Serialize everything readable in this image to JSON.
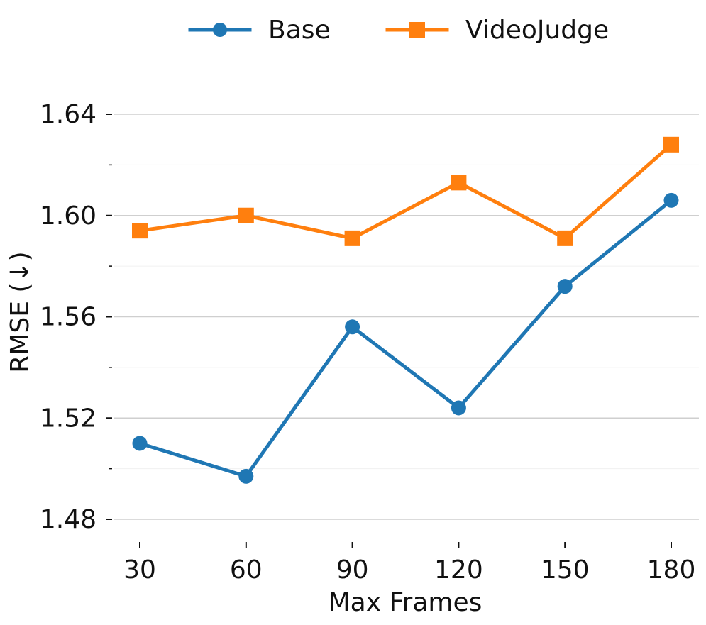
{
  "chart_data": {
    "type": "line",
    "title": "",
    "xlabel": "Max Frames",
    "ylabel": "RMSE (↓)",
    "categories": [
      "30",
      "60",
      "90",
      "120",
      "150",
      "180"
    ],
    "x": [
      30,
      60,
      90,
      120,
      150,
      180
    ],
    "series": [
      {
        "name": "Base",
        "values": [
          1.51,
          1.497,
          1.556,
          1.524,
          1.572,
          1.606
        ],
        "color": "#1f77b4",
        "marker": "circle"
      },
      {
        "name": "VideoJudge",
        "values": [
          1.594,
          1.6,
          1.591,
          1.613,
          1.591,
          1.628
        ],
        "color": "#ff7f0e",
        "marker": "square"
      }
    ],
    "ylim": [
      1.47,
      1.66
    ],
    "yticks": [
      "1.48",
      "1.52",
      "1.56",
      "1.60",
      "1.64"
    ],
    "yminor_ticks": [
      1.5,
      1.54,
      1.58,
      1.62
    ],
    "grid": true,
    "legend_position": "top-center"
  }
}
